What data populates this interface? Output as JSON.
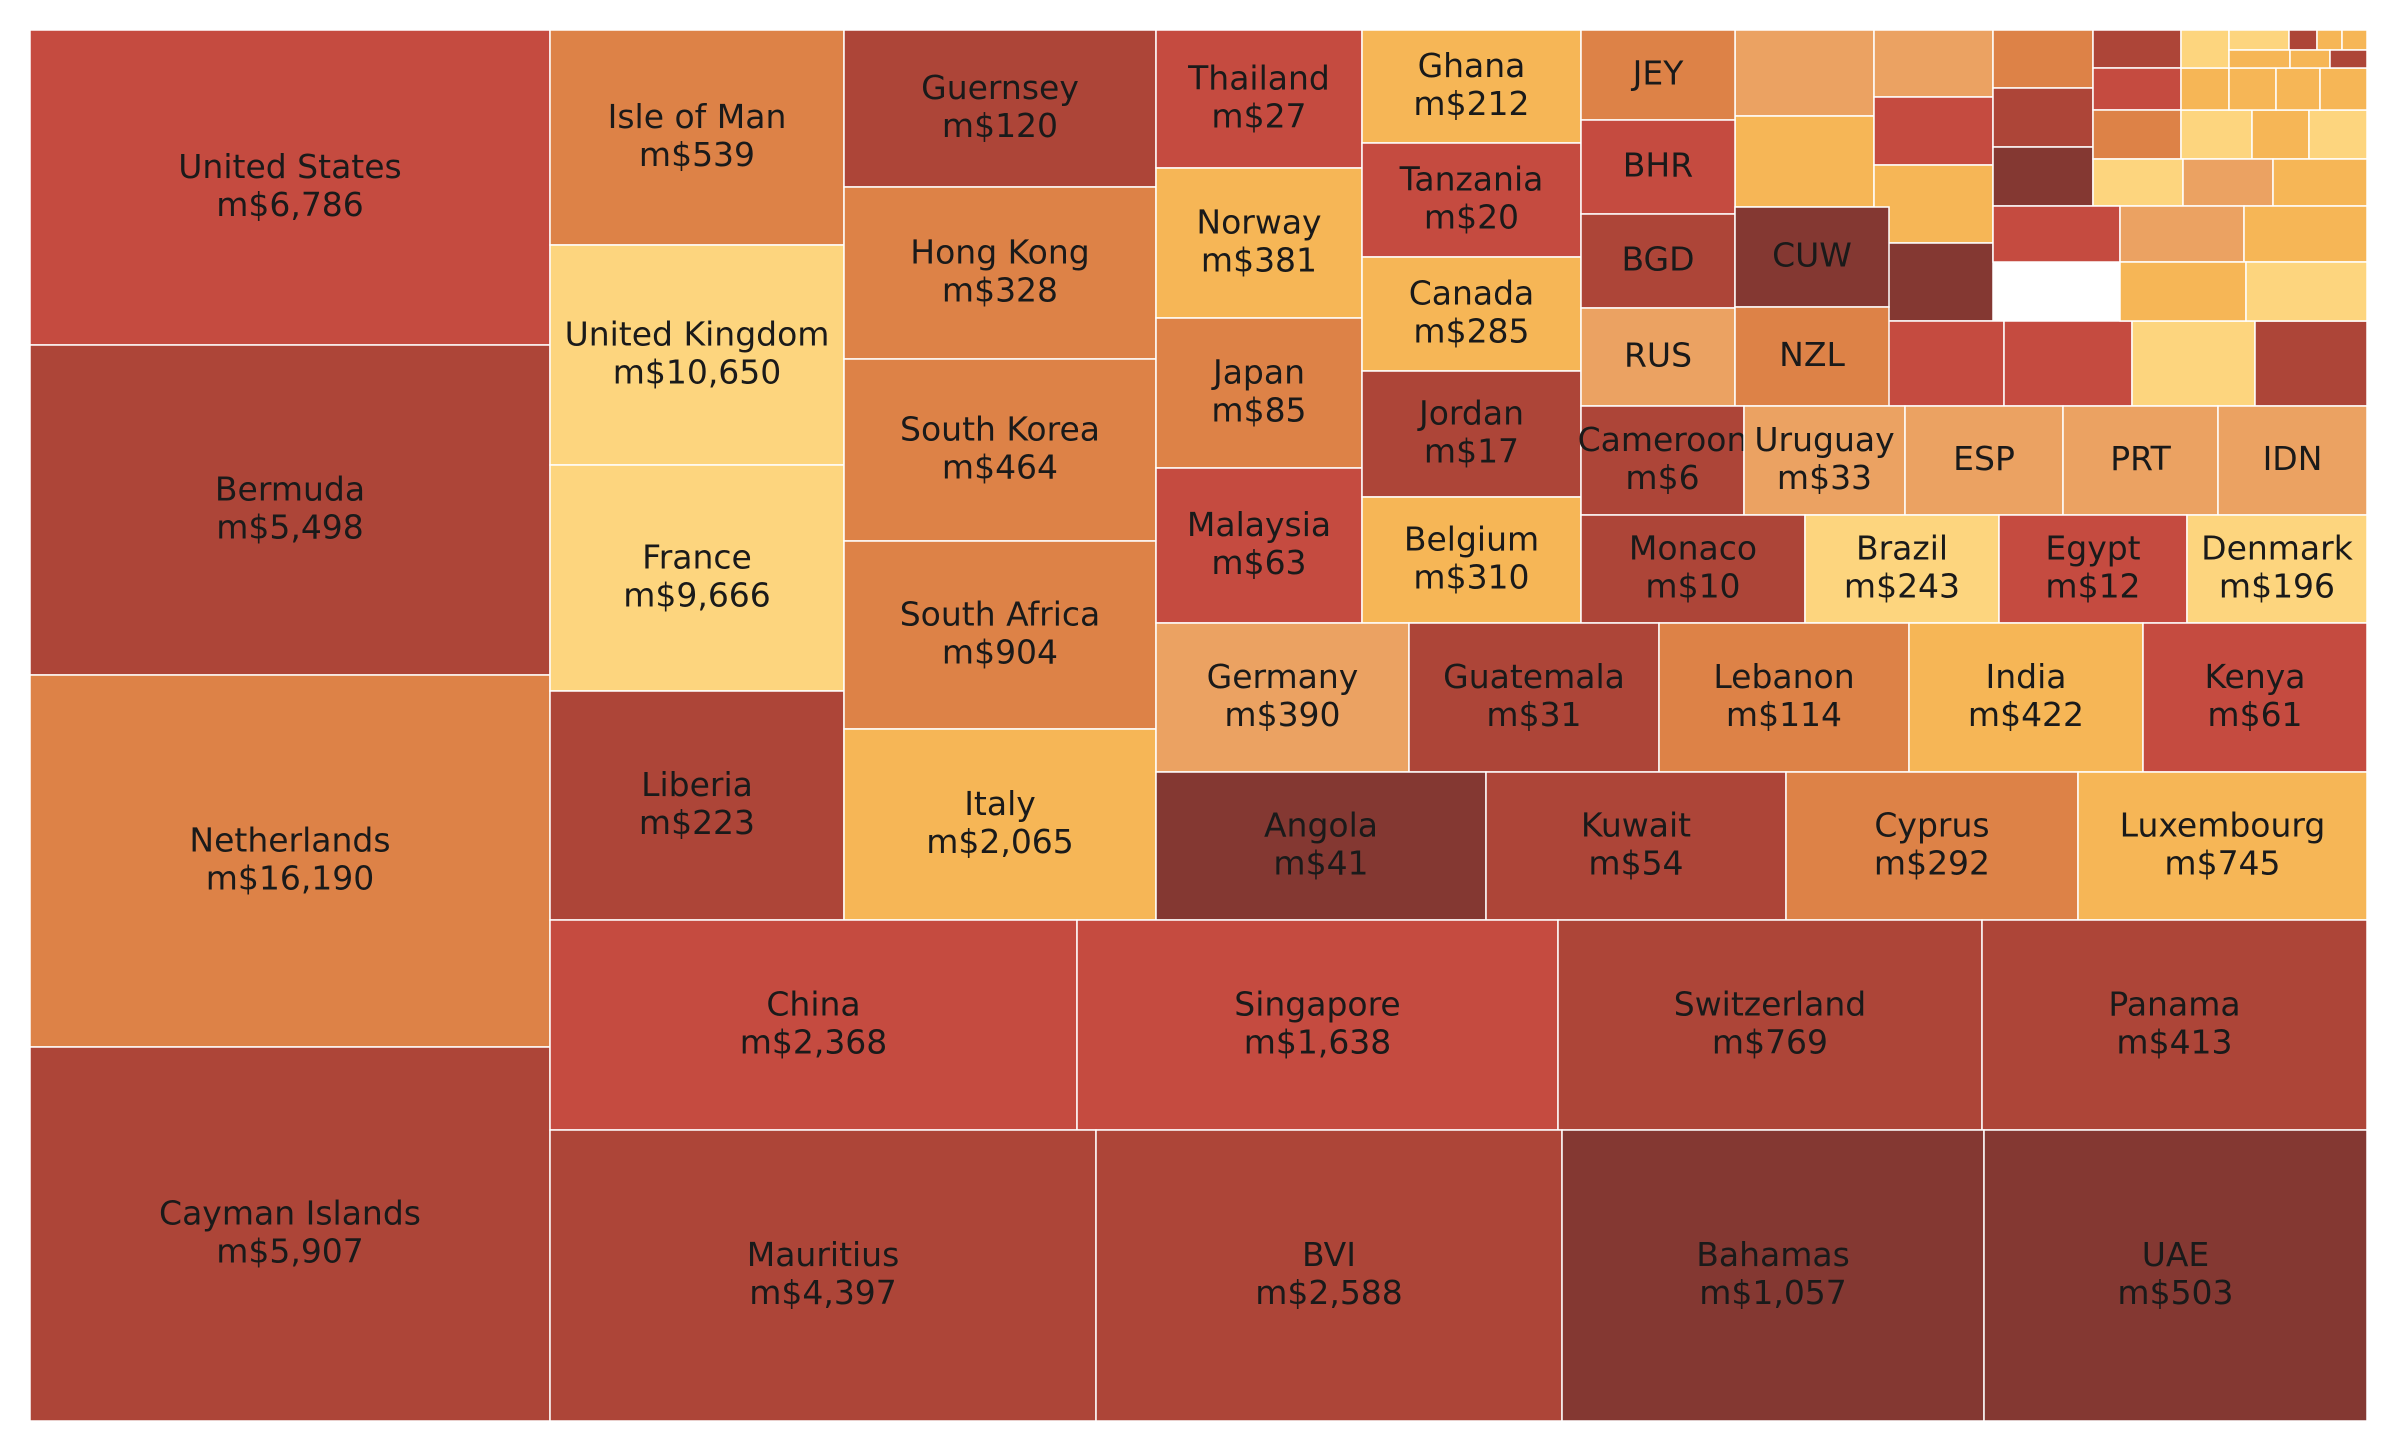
{
  "chart_data": {
    "type": "treemap",
    "title": "",
    "palette": {
      "dark_brown": "#843832",
      "brick": "#AD4538",
      "red": "#C54B40",
      "orange": "#DD8247",
      "light_orange": "#EBA262",
      "amber": "#F6B656",
      "pale_yellow": "#FDD57E",
      "border": "#ffffff"
    },
    "cells": [
      {
        "name": "United States",
        "label": "m$6,786",
        "value": 6786,
        "color": "#C54B40"
      },
      {
        "name": "Bermuda",
        "label": "m$5,498",
        "value": 5498,
        "color": "#AD4538"
      },
      {
        "name": "Netherlands",
        "label": "m$16,190",
        "value": 16190,
        "color": "#DD8247"
      },
      {
        "name": "Cayman Islands",
        "label": "m$5,907",
        "value": 5907,
        "color": "#AD4538"
      },
      {
        "name": "Isle of Man",
        "label": "m$539",
        "value": 539,
        "color": "#DD8247"
      },
      {
        "name": "United Kingdom",
        "label": "m$10,650",
        "value": 10650,
        "color": "#FDD57E"
      },
      {
        "name": "France",
        "label": "m$9,666",
        "value": 9666,
        "color": "#FDD57E"
      },
      {
        "name": "Liberia",
        "label": "m$223",
        "value": 223,
        "color": "#AD4538"
      },
      {
        "name": "Guernsey",
        "label": "m$120",
        "value": 120,
        "color": "#AD4538"
      },
      {
        "name": "Hong Kong",
        "label": "m$328",
        "value": 328,
        "color": "#DD8247"
      },
      {
        "name": "South Korea",
        "label": "m$464",
        "value": 464,
        "color": "#DD8247"
      },
      {
        "name": "South Africa",
        "label": "m$904",
        "value": 904,
        "color": "#DD8247"
      },
      {
        "name": "Italy",
        "label": "m$2,065",
        "value": 2065,
        "color": "#F6B656"
      },
      {
        "name": "Thailand",
        "label": "m$27",
        "value": 27,
        "color": "#C54B40"
      },
      {
        "name": "Norway",
        "label": "m$381",
        "value": 381,
        "color": "#F6B656"
      },
      {
        "name": "Japan",
        "label": "m$85",
        "value": 85,
        "color": "#DD8247"
      },
      {
        "name": "Malaysia",
        "label": "m$63",
        "value": 63,
        "color": "#C54B40"
      },
      {
        "name": "Ghana",
        "label": "m$212",
        "value": 212,
        "color": "#F6B656"
      },
      {
        "name": "Tanzania",
        "label": "m$20",
        "value": 20,
        "color": "#C54B40"
      },
      {
        "name": "Canada",
        "label": "m$285",
        "value": 285,
        "color": "#F6B656"
      },
      {
        "name": "Jordan",
        "label": "m$17",
        "value": 17,
        "color": "#AD4538"
      },
      {
        "name": "Belgium",
        "label": "m$310",
        "value": 310,
        "color": "#F6B656"
      },
      {
        "name": "JEY",
        "label": "",
        "color": "#DD8247"
      },
      {
        "name": "BHR",
        "label": "",
        "color": "#C54B40"
      },
      {
        "name": "BGD",
        "label": "",
        "color": "#AD4538"
      },
      {
        "name": "CUW",
        "label": "",
        "color": "#843832"
      },
      {
        "name": "RUS",
        "label": "",
        "color": "#EBA262"
      },
      {
        "name": "NZL",
        "label": "",
        "color": "#DD8247"
      },
      {
        "name": "Cameroon",
        "label": "m$6",
        "value": 6,
        "color": "#AD4538"
      },
      {
        "name": "Uruguay",
        "label": "m$33",
        "value": 33,
        "color": "#EBA262"
      },
      {
        "name": "ESP",
        "label": "",
        "color": "#EBA262"
      },
      {
        "name": "PRT",
        "label": "",
        "color": "#EBA262"
      },
      {
        "name": "IDN",
        "label": "",
        "color": "#EBA262"
      },
      {
        "name": "Monaco",
        "label": "m$10",
        "value": 10,
        "color": "#AD4538"
      },
      {
        "name": "Brazil",
        "label": "m$243",
        "value": 243,
        "color": "#FDD57E"
      },
      {
        "name": "Egypt",
        "label": "m$12",
        "value": 12,
        "color": "#C54B40"
      },
      {
        "name": "Denmark",
        "label": "m$196",
        "value": 196,
        "color": "#FDD57E"
      },
      {
        "name": "Germany",
        "label": "m$390",
        "value": 390,
        "color": "#EBA262"
      },
      {
        "name": "Guatemala",
        "label": "m$31",
        "value": 31,
        "color": "#AD4538"
      },
      {
        "name": "Lebanon",
        "label": "m$114",
        "value": 114,
        "color": "#DD8247"
      },
      {
        "name": "India",
        "label": "m$422",
        "value": 422,
        "color": "#F6B656"
      },
      {
        "name": "Kenya",
        "label": "m$61",
        "value": 61,
        "color": "#C54B40"
      },
      {
        "name": "Angola",
        "label": "m$41",
        "value": 41,
        "color": "#843832"
      },
      {
        "name": "Kuwait",
        "label": "m$54",
        "value": 54,
        "color": "#AD4538"
      },
      {
        "name": "Cyprus",
        "label": "m$292",
        "value": 292,
        "color": "#DD8247"
      },
      {
        "name": "Luxembourg",
        "label": "m$745",
        "value": 745,
        "color": "#F6B656"
      },
      {
        "name": "China",
        "label": "m$2,368",
        "value": 2368,
        "color": "#C54B40"
      },
      {
        "name": "Singapore",
        "label": "m$1,638",
        "value": 1638,
        "color": "#C54B40"
      },
      {
        "name": "Switzerland",
        "label": "m$769",
        "value": 769,
        "color": "#AD4538"
      },
      {
        "name": "Panama",
        "label": "m$413",
        "value": 413,
        "color": "#AD4538"
      },
      {
        "name": "Mauritius",
        "label": "m$4,397",
        "value": 4397,
        "color": "#AD4538"
      },
      {
        "name": "BVI",
        "label": "m$2,588",
        "value": 2588,
        "color": "#AD4538"
      },
      {
        "name": "Bahamas",
        "label": "m$1,057",
        "value": 1057,
        "color": "#843832"
      },
      {
        "name": "UAE",
        "label": "m$503",
        "value": 503,
        "color": "#843832"
      }
    ],
    "unlabeled_cells": [
      {
        "color": "#EBA262"
      },
      {
        "color": "#EBA262"
      },
      {
        "color": "#F6B656"
      },
      {
        "color": "#C54B40"
      },
      {
        "color": "#F6B656"
      },
      {
        "color": "#843832"
      },
      {
        "color": "#DD8247"
      },
      {
        "color": "#AD4538"
      },
      {
        "color": "#843832"
      },
      {
        "color": "#AD4538"
      },
      {
        "color": "#C54B40"
      },
      {
        "color": "#DD8247"
      },
      {
        "color": "#FDD57E"
      },
      {
        "color": "#F6B656"
      },
      {
        "color": "#FDD57E"
      },
      {
        "color": "#F6B656"
      },
      {
        "color": "#F6B656"
      },
      {
        "color": "#FDD57E"
      },
      {
        "color": "#EBA262"
      },
      {
        "color": "#F6B656"
      },
      {
        "color": "#F6B656"
      },
      {
        "color": "#F6B656"
      },
      {
        "color": "#C54B40"
      },
      {
        "color": "#C54B40"
      },
      {
        "color": "#C54B40"
      },
      {
        "color": "#FDD57E"
      },
      {
        "color": "#AD4538"
      },
      {
        "color": "#EBA262"
      },
      {
        "color": "#F6B656"
      },
      {
        "color": "#F6B656"
      },
      {
        "color": "#FDD57E"
      },
      {
        "color": "#FDD57E"
      },
      {
        "color": "#FDD57E"
      },
      {
        "color": "#AD4538"
      },
      {
        "color": "#F6B656"
      },
      {
        "color": "#F6B656"
      },
      {
        "color": "#F6B656"
      },
      {
        "color": "#F6B656"
      },
      {
        "color": "#AD4538"
      },
      {
        "color": "#FDD57E"
      },
      {
        "color": "#FDD57E"
      },
      {
        "color": "#F6B656"
      },
      {
        "color": "#C54B40"
      },
      {
        "color": "#AD4538"
      }
    ]
  }
}
